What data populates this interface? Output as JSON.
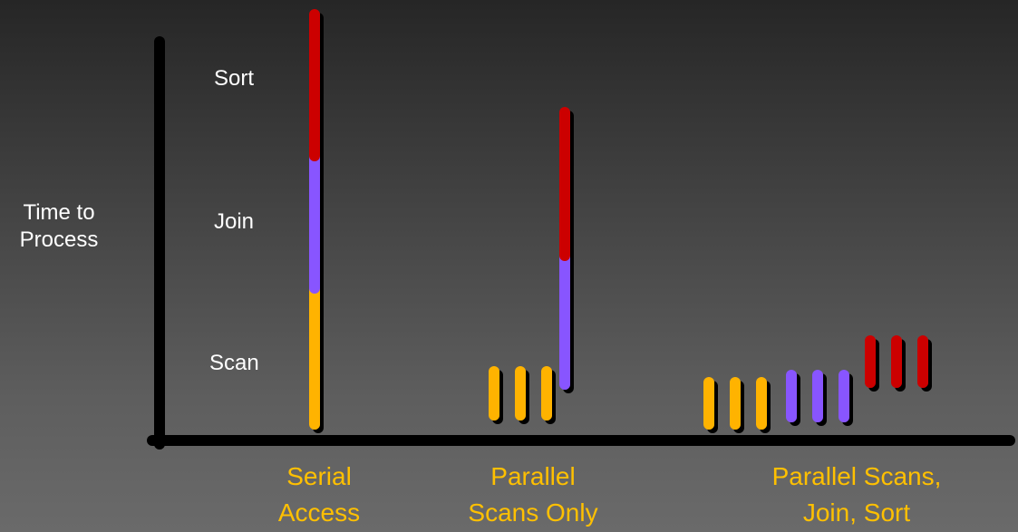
{
  "axis": {
    "y_label_line1": "Time to",
    "y_label_line2": "Process"
  },
  "phases": {
    "sort": "Sort",
    "join": "Join",
    "scan": "Scan"
  },
  "categories": {
    "serial_line1": "Serial",
    "serial_line2": "Access",
    "parallel_scans_line1": "Parallel",
    "parallel_scans_line2": "Scans Only",
    "parallel_all_line1": "Parallel Scans,",
    "parallel_all_line2": "Join, Sort"
  },
  "colors": {
    "scan": "#ffb300",
    "join": "#8855ff",
    "sort": "#cc0000",
    "axis": "#000000",
    "category_text": "#ffc000",
    "label_text": "#ffffff"
  }
}
